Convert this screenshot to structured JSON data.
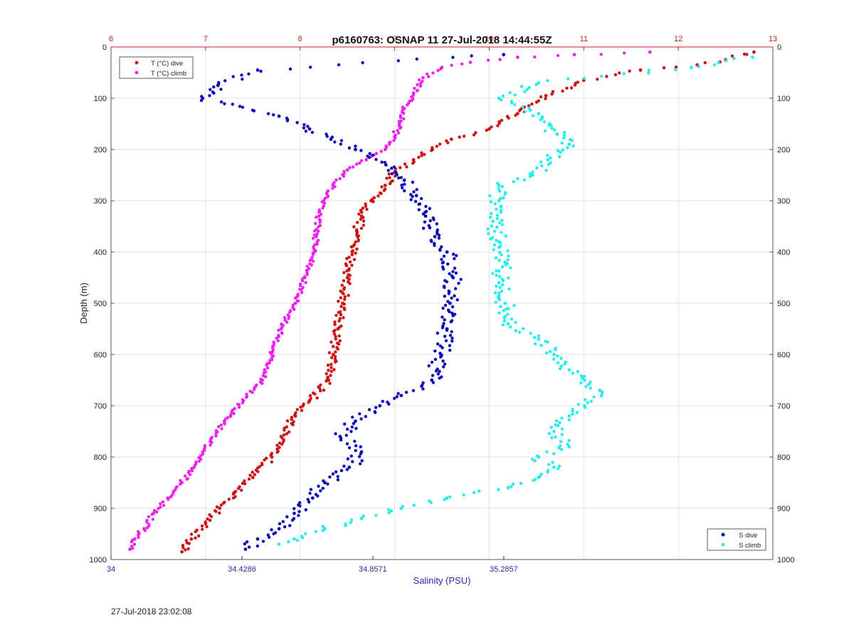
{
  "chart_data": {
    "type": "scatter",
    "title": "p6160763: OSNAP 11 27-Jul-2018 14:44:55Z",
    "ylabel": "Depth (m)",
    "xlabel_bottom": "Salinity (PSU)",
    "xlim_bottom": [
      34.0,
      36.1667
    ],
    "xticks_bottom": [
      "34",
      "34.4286",
      "34.8571",
      "35.2857"
    ],
    "xlim_top": [
      6,
      13
    ],
    "xticks_top": [
      "6",
      "7",
      "8",
      "9",
      "10",
      "11",
      "12",
      "13"
    ],
    "ylim": [
      1000,
      0
    ],
    "yticks": [
      "0",
      "100",
      "200",
      "300",
      "400",
      "500",
      "600",
      "700",
      "800",
      "900",
      "1000"
    ],
    "grid": true,
    "colors": {
      "t_dive": "#d01010",
      "t_climb": "#ee22ee",
      "s_dive": "#0a0aba",
      "s_climb": "#22eeee",
      "top_axis": "#c82020",
      "bottom_axis": "#2a2ab0"
    },
    "legend_top": {
      "placement": "top-left",
      "entries": [
        "T (°C) dive",
        "T (°C) climb"
      ]
    },
    "legend_bottom": {
      "placement": "bottom-right",
      "entries": [
        "S dive",
        "S climb"
      ]
    },
    "series": [
      {
        "name": "T (°C) dive",
        "axis": "top",
        "points": [
          [
            12.8,
            10
          ],
          [
            12.5,
            25
          ],
          [
            12.2,
            35
          ],
          [
            11.6,
            45
          ],
          [
            11.0,
            65
          ],
          [
            10.6,
            95
          ],
          [
            10.3,
            130
          ],
          [
            10.0,
            160
          ],
          [
            9.6,
            180
          ],
          [
            9.4,
            200
          ],
          [
            9.2,
            220
          ],
          [
            9.0,
            245
          ],
          [
            8.9,
            270
          ],
          [
            8.75,
            300
          ],
          [
            8.65,
            330
          ],
          [
            8.6,
            360
          ],
          [
            8.55,
            400
          ],
          [
            8.5,
            450
          ],
          [
            8.45,
            500
          ],
          [
            8.4,
            550
          ],
          [
            8.35,
            600
          ],
          [
            8.3,
            650
          ],
          [
            8.1,
            690
          ],
          [
            7.95,
            720
          ],
          [
            7.8,
            760
          ],
          [
            7.7,
            800
          ],
          [
            7.5,
            840
          ],
          [
            7.3,
            870
          ],
          [
            7.15,
            900
          ],
          [
            7.0,
            930
          ],
          [
            6.85,
            960
          ],
          [
            6.75,
            985
          ]
        ]
      },
      {
        "name": "T (°C) climb",
        "axis": "top",
        "points": [
          [
            11.7,
            10
          ],
          [
            10.9,
            15
          ],
          [
            10.3,
            20
          ],
          [
            9.8,
            30
          ],
          [
            9.5,
            40
          ],
          [
            9.3,
            60
          ],
          [
            9.2,
            90
          ],
          [
            9.1,
            120
          ],
          [
            9.05,
            150
          ],
          [
            9.0,
            175
          ],
          [
            8.9,
            200
          ],
          [
            8.7,
            220
          ],
          [
            8.5,
            240
          ],
          [
            8.35,
            270
          ],
          [
            8.25,
            300
          ],
          [
            8.2,
            330
          ],
          [
            8.17,
            370
          ],
          [
            8.15,
            400
          ],
          [
            8.05,
            450
          ],
          [
            7.95,
            500
          ],
          [
            7.8,
            550
          ],
          [
            7.7,
            600
          ],
          [
            7.6,
            650
          ],
          [
            7.4,
            690
          ],
          [
            7.2,
            730
          ],
          [
            7.05,
            770
          ],
          [
            6.9,
            810
          ],
          [
            6.75,
            850
          ],
          [
            6.6,
            880
          ],
          [
            6.45,
            910
          ],
          [
            6.35,
            940
          ],
          [
            6.25,
            960
          ],
          [
            6.2,
            980
          ]
        ]
      },
      {
        "name": "S dive",
        "axis": "bottom",
        "points": [
          [
            35.285,
            15
          ],
          [
            34.48,
            45
          ],
          [
            34.35,
            75
          ],
          [
            34.3,
            100
          ],
          [
            34.55,
            135
          ],
          [
            34.65,
            160
          ],
          [
            34.72,
            180
          ],
          [
            34.8,
            200
          ],
          [
            34.9,
            230
          ],
          [
            34.96,
            260
          ],
          [
            35.0,
            290
          ],
          [
            35.03,
            330
          ],
          [
            35.06,
            370
          ],
          [
            35.1,
            400
          ],
          [
            35.12,
            450
          ],
          [
            35.11,
            500
          ],
          [
            35.1,
            550
          ],
          [
            35.08,
            600
          ],
          [
            35.05,
            650
          ],
          [
            34.95,
            680
          ],
          [
            34.88,
            700
          ],
          [
            34.8,
            730
          ],
          [
            34.75,
            760
          ],
          [
            34.82,
            790
          ],
          [
            34.78,
            820
          ],
          [
            34.7,
            850
          ],
          [
            34.66,
            880
          ],
          [
            34.6,
            910
          ],
          [
            34.55,
            940
          ],
          [
            34.48,
            960
          ],
          [
            34.44,
            980
          ]
        ]
      },
      {
        "name": "S climb",
        "axis": "bottom",
        "points": [
          [
            36.1,
            20
          ],
          [
            35.9,
            40
          ],
          [
            35.4,
            70
          ],
          [
            35.27,
            100
          ],
          [
            35.4,
            130
          ],
          [
            35.46,
            170
          ],
          [
            35.5,
            190
          ],
          [
            35.43,
            220
          ],
          [
            35.38,
            250
          ],
          [
            35.27,
            270
          ],
          [
            35.27,
            300
          ],
          [
            35.25,
            340
          ],
          [
            35.27,
            380
          ],
          [
            35.29,
            420
          ],
          [
            35.27,
            460
          ],
          [
            35.29,
            500
          ],
          [
            35.3,
            540
          ],
          [
            35.4,
            570
          ],
          [
            35.45,
            600
          ],
          [
            35.5,
            630
          ],
          [
            35.55,
            650
          ],
          [
            35.6,
            670
          ],
          [
            35.55,
            700
          ],
          [
            35.5,
            720
          ],
          [
            35.45,
            750
          ],
          [
            35.5,
            780
          ],
          [
            35.4,
            800
          ],
          [
            35.45,
            820
          ],
          [
            35.4,
            840
          ],
          [
            35.3,
            860
          ],
          [
            35.1,
            880
          ],
          [
            34.95,
            900
          ],
          [
            34.82,
            920
          ],
          [
            34.7,
            940
          ],
          [
            34.6,
            960
          ],
          [
            34.55,
            970
          ]
        ]
      }
    ]
  },
  "footer": {
    "timestamp": "27-Jul-2018 23:02:08"
  }
}
